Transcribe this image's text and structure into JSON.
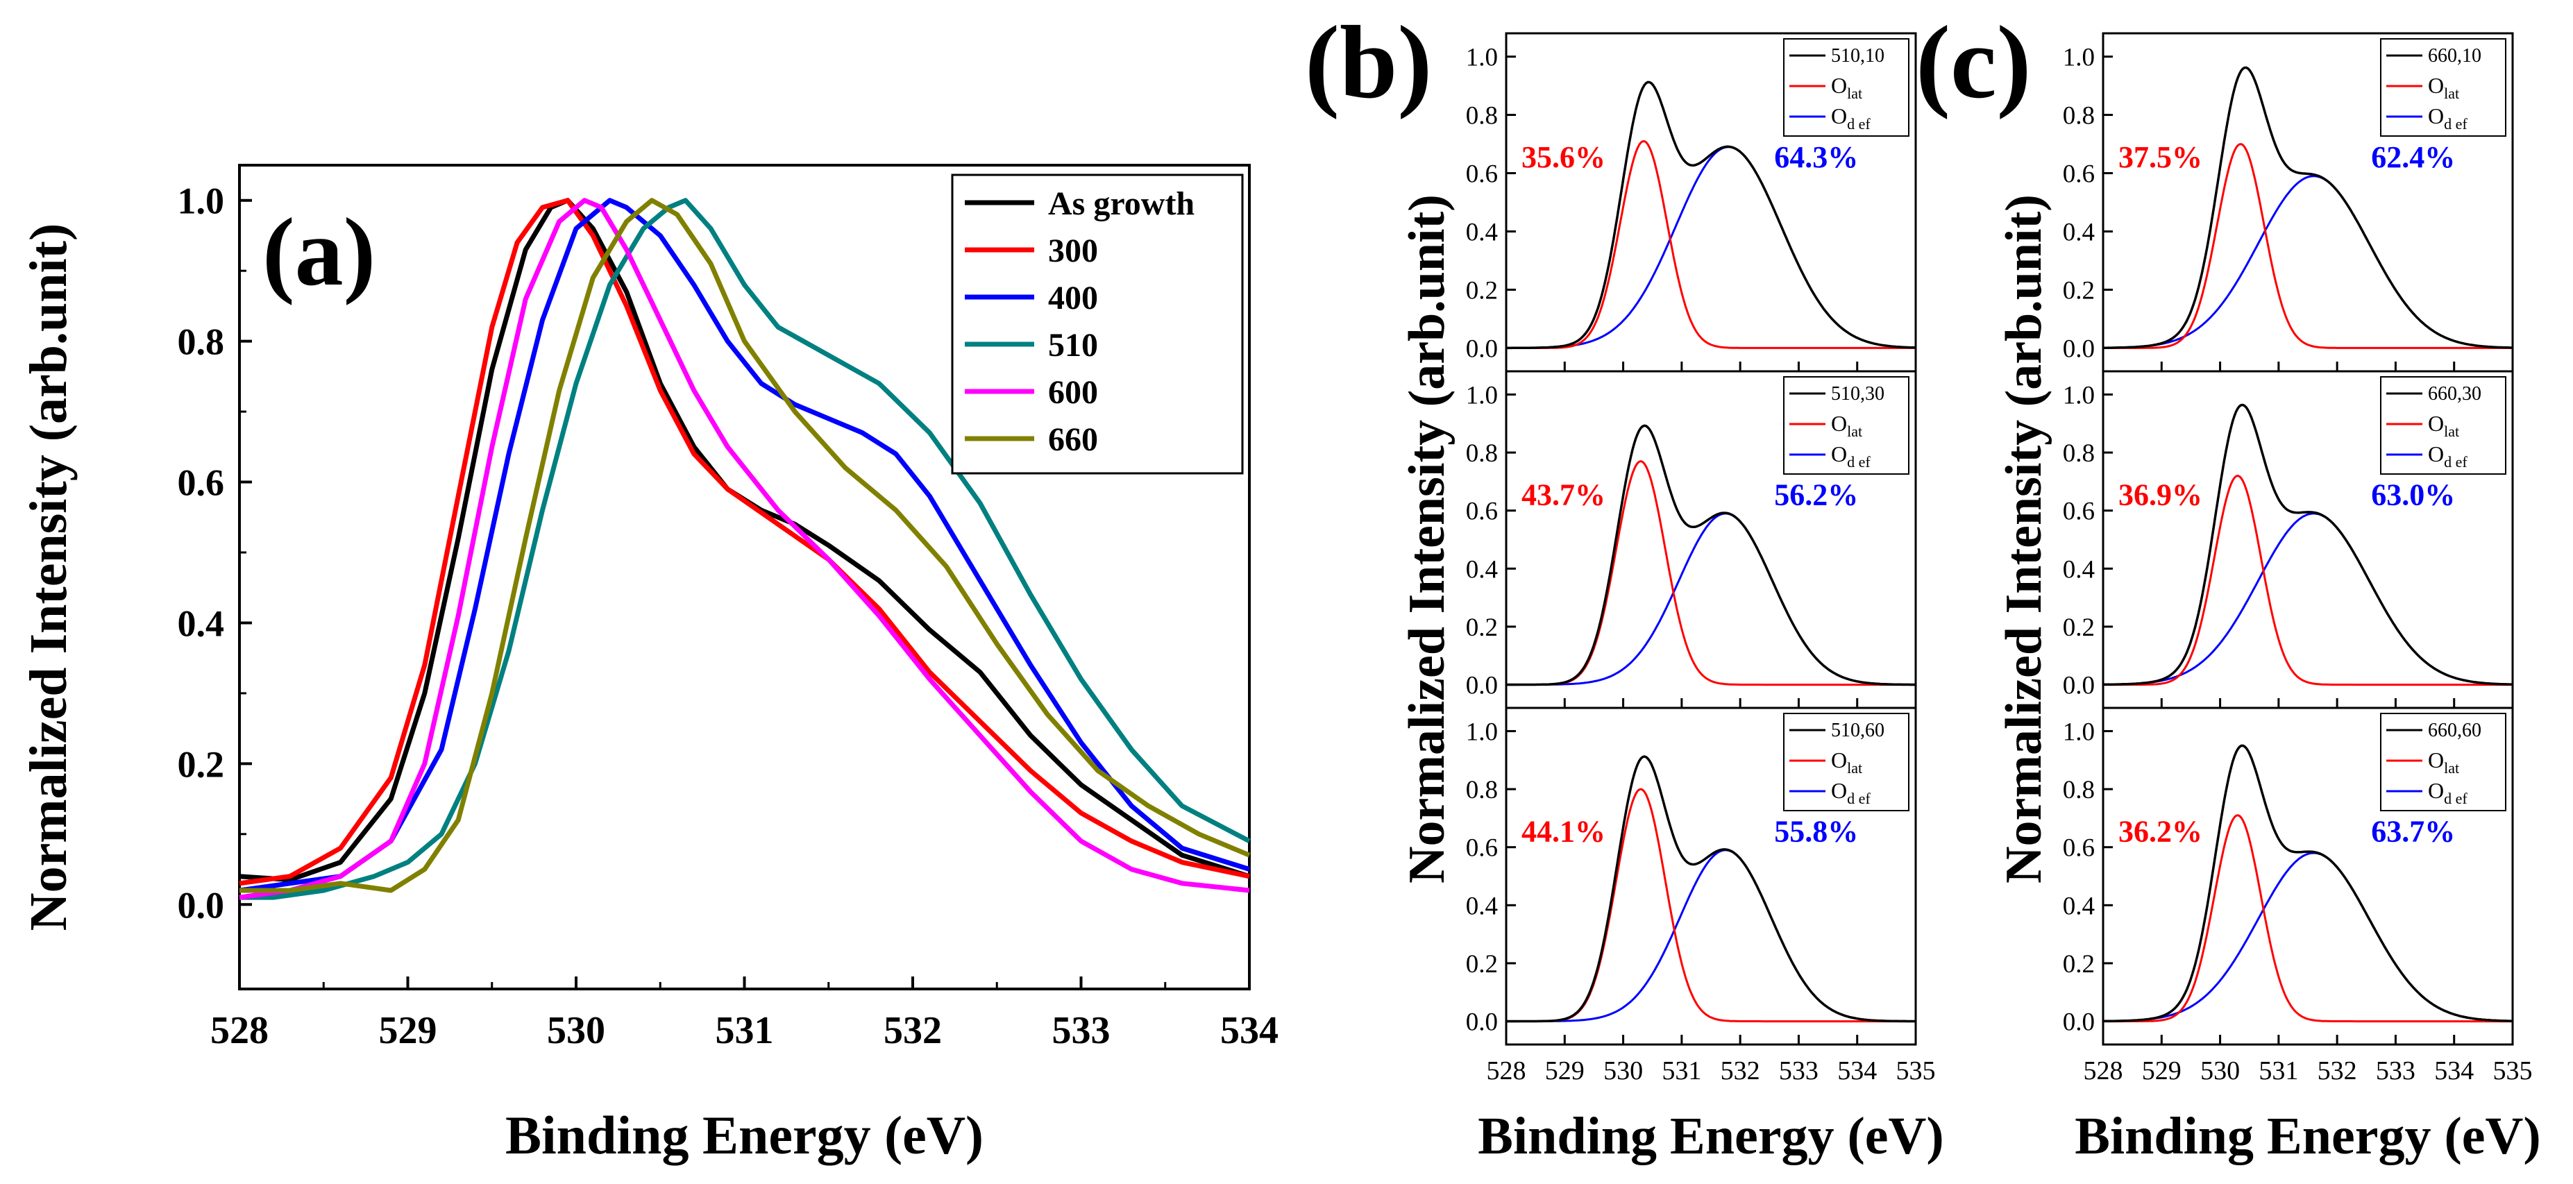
{
  "colors": {
    "as_growth": "#000000",
    "t300": "#ff0000",
    "t400": "#0000ff",
    "t510": "#008080",
    "t600": "#ff00ff",
    "t660": "#808000",
    "total": "#000000",
    "o_lat": "#ff0000",
    "o_def": "#0000ff"
  },
  "chart_data": [
    {
      "id": "a",
      "type": "line",
      "panel_label": "(a)",
      "xlabel": "Binding Energy (eV)",
      "ylabel": "Normalized Intensity (arb.unit)",
      "xlim": [
        528,
        534
      ],
      "ylim": [
        -0.12,
        1.05
      ],
      "xticks": [
        "528",
        "529",
        "530",
        "531",
        "532",
        "533",
        "534"
      ],
      "yticks": [
        "0.0",
        "0.2",
        "0.4",
        "0.6",
        "0.8",
        "1.0"
      ],
      "legend_position": "top-right",
      "series": [
        {
          "name": "As growth",
          "color_key": "as_growth",
          "x": [
            528.0,
            528.3,
            528.6,
            528.9,
            529.1,
            529.3,
            529.5,
            529.7,
            529.85,
            529.95,
            530.1,
            530.3,
            530.5,
            530.7,
            530.9,
            531.1,
            531.3,
            531.5,
            531.8,
            532.1,
            532.4,
            532.7,
            533.0,
            533.3,
            533.6,
            534.0
          ],
          "y": [
            0.04,
            0.035,
            0.06,
            0.15,
            0.3,
            0.52,
            0.76,
            0.93,
            0.99,
            1.0,
            0.96,
            0.87,
            0.74,
            0.65,
            0.59,
            0.56,
            0.54,
            0.51,
            0.46,
            0.39,
            0.33,
            0.24,
            0.17,
            0.12,
            0.07,
            0.04
          ]
        },
        {
          "name": "300",
          "color_key": "t300",
          "x": [
            528.0,
            528.3,
            528.6,
            528.9,
            529.1,
            529.3,
            529.5,
            529.65,
            529.8,
            529.95,
            530.1,
            530.3,
            530.5,
            530.7,
            530.9,
            531.2,
            531.5,
            531.8,
            532.1,
            532.4,
            532.7,
            533.0,
            533.3,
            533.6,
            534.0
          ],
          "y": [
            0.03,
            0.04,
            0.08,
            0.18,
            0.34,
            0.58,
            0.82,
            0.94,
            0.99,
            1.0,
            0.95,
            0.85,
            0.73,
            0.64,
            0.59,
            0.54,
            0.49,
            0.42,
            0.33,
            0.26,
            0.19,
            0.13,
            0.09,
            0.06,
            0.04
          ]
        },
        {
          "name": "400",
          "color_key": "t400",
          "x": [
            528.0,
            528.3,
            528.6,
            528.9,
            529.2,
            529.4,
            529.6,
            529.8,
            530.0,
            530.2,
            530.3,
            530.5,
            530.7,
            530.9,
            531.1,
            531.3,
            531.5,
            531.7,
            531.9,
            532.1,
            532.4,
            532.7,
            533.0,
            533.3,
            533.6,
            534.0
          ],
          "y": [
            0.02,
            0.03,
            0.04,
            0.09,
            0.22,
            0.42,
            0.64,
            0.83,
            0.96,
            1.0,
            0.99,
            0.95,
            0.88,
            0.8,
            0.74,
            0.71,
            0.69,
            0.67,
            0.64,
            0.58,
            0.46,
            0.34,
            0.23,
            0.14,
            0.08,
            0.05
          ]
        },
        {
          "name": "510",
          "color_key": "t510",
          "x": [
            528.0,
            528.2,
            528.5,
            528.8,
            529.0,
            529.2,
            529.4,
            529.6,
            529.8,
            530.0,
            530.2,
            530.4,
            530.55,
            530.65,
            530.8,
            531.0,
            531.2,
            531.5,
            531.8,
            532.1,
            532.4,
            532.7,
            533.0,
            533.3,
            533.6,
            534.0
          ],
          "y": [
            0.01,
            0.01,
            0.02,
            0.04,
            0.06,
            0.1,
            0.2,
            0.36,
            0.56,
            0.74,
            0.88,
            0.96,
            0.99,
            1.0,
            0.96,
            0.88,
            0.82,
            0.78,
            0.74,
            0.67,
            0.57,
            0.44,
            0.32,
            0.22,
            0.14,
            0.09
          ]
        },
        {
          "name": "600",
          "color_key": "t600",
          "x": [
            528.0,
            528.3,
            528.6,
            528.9,
            529.1,
            529.3,
            529.5,
            529.7,
            529.9,
            530.05,
            530.15,
            530.3,
            530.5,
            530.7,
            530.9,
            531.2,
            531.5,
            531.8,
            532.1,
            532.4,
            532.7,
            533.0,
            533.3,
            533.6,
            534.0
          ],
          "y": [
            0.01,
            0.02,
            0.04,
            0.09,
            0.2,
            0.41,
            0.65,
            0.86,
            0.97,
            1.0,
            0.99,
            0.93,
            0.83,
            0.73,
            0.65,
            0.56,
            0.49,
            0.41,
            0.32,
            0.24,
            0.16,
            0.09,
            0.05,
            0.03,
            0.02
          ]
        },
        {
          "name": "660",
          "color_key": "t660",
          "x": [
            528.0,
            528.3,
            528.6,
            528.9,
            529.1,
            529.3,
            529.5,
            529.7,
            529.9,
            530.1,
            530.3,
            530.45,
            530.6,
            530.8,
            531.0,
            531.3,
            531.6,
            531.9,
            532.2,
            532.5,
            532.8,
            533.1,
            533.4,
            533.7,
            534.0
          ],
          "y": [
            0.02,
            0.02,
            0.03,
            0.02,
            0.05,
            0.12,
            0.3,
            0.52,
            0.73,
            0.89,
            0.97,
            1.0,
            0.98,
            0.91,
            0.8,
            0.7,
            0.62,
            0.56,
            0.48,
            0.37,
            0.27,
            0.19,
            0.14,
            0.1,
            0.07
          ]
        }
      ]
    },
    {
      "id": "b",
      "type": "line",
      "panel_label": "(b)",
      "xlabel": "Binding Energy (eV)",
      "ylabel": "Normalized Intensity (arb.unit)",
      "xlim": [
        528,
        535
      ],
      "ylim": [
        -0.08,
        1.08
      ],
      "xticks": [
        "528",
        "529",
        "530",
        "531",
        "532",
        "533",
        "534",
        "535"
      ],
      "yticks": [
        "0.0",
        "0.2",
        "0.4",
        "0.6",
        "0.8",
        "1.0"
      ],
      "subplots": [
        {
          "legend": {
            "total": "510,10",
            "lat_main": "O",
            "lat_sub": "lat",
            "def_main": "O",
            "def_sub": "d ef"
          },
          "o_lat_percent": "35.6%",
          "o_def_percent": "64.3%",
          "o_lat_peak": {
            "center": 530.35,
            "height": 0.71,
            "sigma": 0.4
          },
          "o_def_peak": {
            "center": 531.8,
            "height": 0.69,
            "sigma": 0.9
          }
        },
        {
          "legend": {
            "total": "510,30",
            "lat_main": "O",
            "lat_sub": "lat",
            "def_main": "O",
            "def_sub": "d ef"
          },
          "o_lat_percent": "43.7%",
          "o_def_percent": "56.2%",
          "o_lat_peak": {
            "center": 530.3,
            "height": 0.77,
            "sigma": 0.42
          },
          "o_def_peak": {
            "center": 531.75,
            "height": 0.59,
            "sigma": 0.8
          }
        },
        {
          "legend": {
            "total": "510,60",
            "lat_main": "O",
            "lat_sub": "lat",
            "def_main": "O",
            "def_sub": "d ef"
          },
          "o_lat_percent": "44.1%",
          "o_def_percent": "55.8%",
          "o_lat_peak": {
            "center": 530.3,
            "height": 0.8,
            "sigma": 0.42
          },
          "o_def_peak": {
            "center": 531.75,
            "height": 0.59,
            "sigma": 0.78
          }
        }
      ]
    },
    {
      "id": "c",
      "type": "line",
      "panel_label": "(c)",
      "xlabel": "Binding Energy (eV)",
      "ylabel": "Normalized Intensity (arb.unit)",
      "xlim": [
        528,
        535
      ],
      "ylim": [
        -0.08,
        1.08
      ],
      "xticks": [
        "528",
        "529",
        "530",
        "531",
        "532",
        "533",
        "534",
        "535"
      ],
      "yticks": [
        "0.0",
        "0.2",
        "0.4",
        "0.6",
        "0.8",
        "1.0"
      ],
      "subplots": [
        {
          "legend": {
            "total": "660,10",
            "lat_main": "O",
            "lat_sub": "lat",
            "def_main": "O",
            "def_sub": "d ef"
          },
          "o_lat_percent": "37.5%",
          "o_def_percent": "62.4%",
          "o_lat_peak": {
            "center": 530.35,
            "height": 0.7,
            "sigma": 0.4
          },
          "o_def_peak": {
            "center": 531.6,
            "height": 0.59,
            "sigma": 0.95
          }
        },
        {
          "legend": {
            "total": "660,30",
            "lat_main": "O",
            "lat_sub": "lat",
            "def_main": "O",
            "def_sub": "d ef"
          },
          "o_lat_percent": "36.9%",
          "o_def_percent": "63.0%",
          "o_lat_peak": {
            "center": 530.3,
            "height": 0.72,
            "sigma": 0.4
          },
          "o_def_peak": {
            "center": 531.6,
            "height": 0.59,
            "sigma": 0.95
          }
        },
        {
          "legend": {
            "total": "660,60",
            "lat_main": "O",
            "lat_sub": "lat",
            "def_main": "O",
            "def_sub": "d ef"
          },
          "o_lat_percent": "36.2%",
          "o_def_percent": "63.7%",
          "o_lat_peak": {
            "center": 530.3,
            "height": 0.71,
            "sigma": 0.4
          },
          "o_def_peak": {
            "center": 531.6,
            "height": 0.58,
            "sigma": 0.95
          }
        }
      ]
    }
  ]
}
